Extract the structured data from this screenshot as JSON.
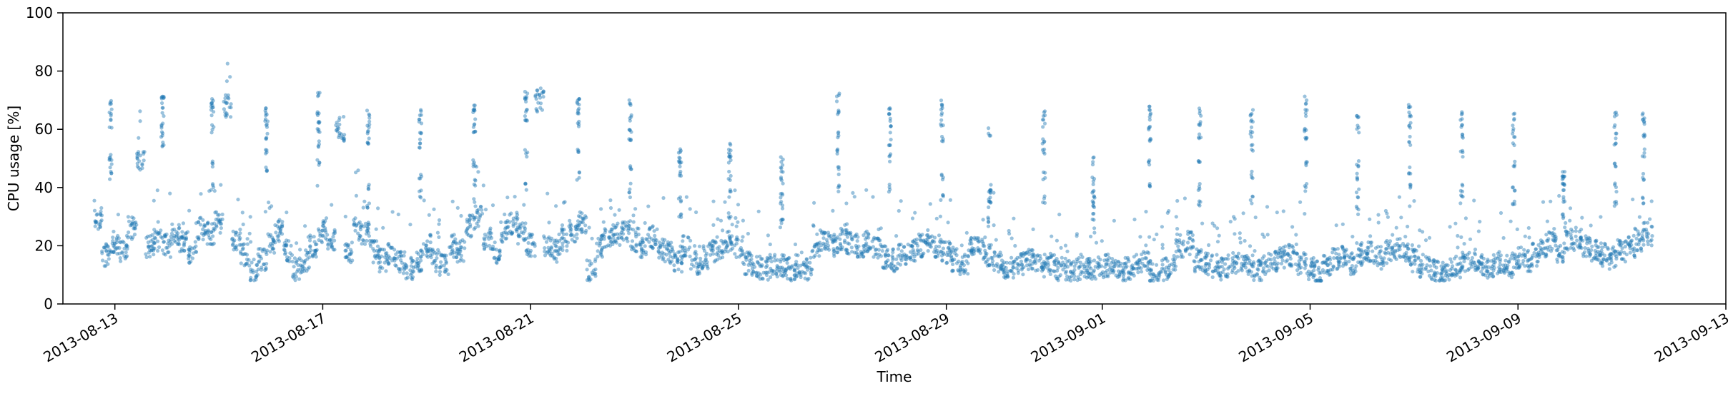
{
  "chart_data": {
    "type": "scatter",
    "xlabel": "Time",
    "ylabel": "CPU usage [%]",
    "ylim": [
      0,
      100
    ],
    "yticks": [
      0,
      20,
      40,
      60,
      80,
      100
    ],
    "xlim": [
      "2013-08-12T00:00",
      "2013-09-13T00:00"
    ],
    "xticks": [
      "2013-08-13",
      "2013-08-17",
      "2013-08-21",
      "2013-08-25",
      "2013-08-29",
      "2013-09-01",
      "2013-09-05",
      "2013-09-09",
      "2013-09-13"
    ],
    "grid": false,
    "legend": "none",
    "marker_color": "#1f77b4",
    "marker_opacity": 0.45,
    "series": [
      {
        "x": [
          "2013-08-12T16:00",
          "2013-08-12T20:00",
          "2013-08-13T00:00",
          "2013-08-13T04:00",
          "2013-08-13T08:00",
          "2013-08-13T12:00",
          "2013-08-13T16:00",
          "2013-08-13T20:00",
          "2013-08-14T00:00",
          "2013-08-14T04:00",
          "2013-08-14T08:00",
          "2013-08-14T12:00",
          "2013-08-14T16:00",
          "2013-08-14T20:00",
          "2013-08-15T00:00",
          "2013-08-15T04:00",
          "2013-08-15T08:00",
          "2013-08-15T12:00",
          "2013-08-15T16:00",
          "2013-08-15T20:00",
          "2013-08-16T00:00",
          "2013-08-16T04:00",
          "2013-08-16T08:00",
          "2013-08-16T12:00",
          "2013-08-16T16:00",
          "2013-08-16T20:00",
          "2013-08-17T00:00",
          "2013-08-17T04:00",
          "2013-08-17T08:00",
          "2013-08-17T12:00",
          "2013-08-17T16:00",
          "2013-08-17T20:00",
          "2013-08-18T00:00",
          "2013-08-18T04:00",
          "2013-08-18T08:00",
          "2013-08-18T12:00",
          "2013-08-18T16:00",
          "2013-08-18T20:00",
          "2013-08-19T00:00",
          "2013-08-19T04:00",
          "2013-08-19T08:00",
          "2013-08-19T12:00",
          "2013-08-19T16:00",
          "2013-08-19T20:00",
          "2013-08-20T00:00",
          "2013-08-20T04:00",
          "2013-08-20T08:00",
          "2013-08-20T12:00",
          "2013-08-20T16:00",
          "2013-08-20T20:00",
          "2013-08-21T00:00",
          "2013-08-21T04:00",
          "2013-08-21T08:00",
          "2013-08-21T12:00",
          "2013-08-21T16:00",
          "2013-08-21T20:00",
          "2013-08-22T00:00",
          "2013-08-22T04:00",
          "2013-08-22T08:00",
          "2013-08-22T12:00",
          "2013-08-22T16:00",
          "2013-08-22T20:00",
          "2013-08-23T00:00",
          "2013-08-23T04:00",
          "2013-08-23T08:00",
          "2013-08-23T12:00",
          "2013-08-23T16:00",
          "2013-08-23T20:00",
          "2013-08-24T00:00",
          "2013-08-24T04:00",
          "2013-08-24T08:00",
          "2013-08-24T12:00",
          "2013-08-24T16:00",
          "2013-08-24T20:00",
          "2013-08-25T00:00",
          "2013-08-25T04:00",
          "2013-08-25T08:00",
          "2013-08-25T12:00",
          "2013-08-25T16:00",
          "2013-08-25T20:00",
          "2013-08-26T00:00",
          "2013-08-26T04:00",
          "2013-08-26T08:00",
          "2013-08-26T12:00",
          "2013-08-26T16:00",
          "2013-08-26T20:00",
          "2013-08-27T00:00",
          "2013-08-27T04:00",
          "2013-08-27T08:00",
          "2013-08-27T12:00",
          "2013-08-27T16:00",
          "2013-08-27T20:00",
          "2013-08-28T00:00",
          "2013-08-28T04:00",
          "2013-08-28T08:00",
          "2013-08-28T12:00",
          "2013-08-28T16:00",
          "2013-08-28T20:00",
          "2013-08-29T00:00",
          "2013-08-29T04:00",
          "2013-08-29T08:00",
          "2013-08-29T12:00",
          "2013-08-29T16:00",
          "2013-08-29T20:00",
          "2013-08-30T00:00",
          "2013-08-30T04:00",
          "2013-08-30T08:00",
          "2013-08-30T12:00",
          "2013-08-30T16:00",
          "2013-08-30T20:00",
          "2013-08-31T00:00",
          "2013-08-31T04:00",
          "2013-08-31T08:00",
          "2013-08-31T12:00",
          "2013-08-31T16:00",
          "2013-08-31T20:00",
          "2013-09-01T00:00",
          "2013-09-01T04:00",
          "2013-09-01T08:00",
          "2013-09-01T12:00",
          "2013-09-01T16:00",
          "2013-09-01T20:00",
          "2013-09-02T00:00",
          "2013-09-02T04:00",
          "2013-09-02T08:00",
          "2013-09-02T12:00",
          "2013-09-02T16:00",
          "2013-09-02T20:00",
          "2013-09-03T00:00",
          "2013-09-03T04:00",
          "2013-09-03T08:00",
          "2013-09-03T12:00",
          "2013-09-03T16:00",
          "2013-09-03T20:00",
          "2013-09-04T00:00",
          "2013-09-04T04:00",
          "2013-09-04T08:00",
          "2013-09-04T12:00",
          "2013-09-04T16:00",
          "2013-09-04T20:00",
          "2013-09-05T00:00",
          "2013-09-05T04:00",
          "2013-09-05T08:00",
          "2013-09-05T12:00",
          "2013-09-05T16:00",
          "2013-09-05T20:00",
          "2013-09-06T00:00",
          "2013-09-06T04:00",
          "2013-09-06T08:00",
          "2013-09-06T12:00",
          "2013-09-06T16:00",
          "2013-09-06T20:00",
          "2013-09-07T00:00",
          "2013-09-07T04:00",
          "2013-09-07T08:00",
          "2013-09-07T12:00",
          "2013-09-07T16:00",
          "2013-09-07T20:00",
          "2013-09-08T00:00",
          "2013-09-08T04:00",
          "2013-09-08T08:00",
          "2013-09-08T12:00",
          "2013-09-08T16:00",
          "2013-09-08T20:00",
          "2013-09-09T00:00",
          "2013-09-09T04:00",
          "2013-09-09T08:00",
          "2013-09-09T12:00",
          "2013-09-09T16:00",
          "2013-09-09T20:00",
          "2013-09-10T00:00",
          "2013-09-10T04:00",
          "2013-09-10T08:00",
          "2013-09-10T12:00",
          "2013-09-10T16:00",
          "2013-09-10T20:00",
          "2013-09-11T00:00",
          "2013-09-11T04:00",
          "2013-09-11T08:00",
          "2013-09-11T12:00"
        ],
        "y": [
          29,
          17,
          21,
          18,
          26,
          50,
          20,
          22,
          20,
          24,
          22,
          18,
          26,
          24,
          28,
          68,
          22,
          17,
          12,
          15,
          20,
          25,
          18,
          12,
          15,
          20,
          25,
          22,
          60,
          18,
          26,
          24,
          18,
          15,
          17,
          14,
          12,
          15,
          20,
          15,
          13,
          20,
          18,
          27,
          30,
          22,
          18,
          25,
          28,
          24,
          20,
          70,
          20,
          18,
          22,
          25,
          28,
          12,
          20,
          22,
          24,
          25,
          22,
          20,
          23,
          19,
          18,
          15,
          20,
          14,
          16,
          18,
          19,
          21,
          20,
          14,
          13,
          12,
          13,
          13,
          12,
          13,
          12,
          20,
          21,
          20,
          22,
          21,
          20,
          22,
          19,
          16,
          15,
          17,
          18,
          20,
          22,
          20,
          18,
          15,
          14,
          20,
          19,
          17,
          14,
          12,
          13,
          14,
          15,
          13,
          14,
          12,
          11,
          12,
          13,
          12,
          13,
          12,
          11,
          12,
          13,
          14,
          11,
          12,
          13,
          20,
          21,
          15,
          14,
          13,
          12,
          14,
          15,
          13,
          12,
          14,
          15,
          16,
          17,
          14,
          12,
          11,
          13,
          15,
          16,
          14,
          17,
          18,
          16,
          18,
          19,
          17,
          15,
          13,
          12,
          11,
          12,
          13,
          14,
          15,
          13,
          12,
          14,
          13,
          16,
          15,
          17,
          20,
          22,
          18,
          22,
          23,
          20,
          18,
          17,
          16,
          18,
          20,
          22,
          24
        ]
      }
    ],
    "spike_clusters": [
      {
        "x": "2013-08-12T22:00",
        "y": [
          44,
          48,
          50,
          62,
          66,
          70
        ]
      },
      {
        "x": "2013-08-13T22:00",
        "y": [
          54,
          58,
          62,
          66,
          70,
          72
        ]
      },
      {
        "x": "2013-08-14T21:00",
        "y": [
          40,
          48,
          60,
          66,
          68,
          69
        ]
      },
      {
        "x": "2013-08-15T22:00",
        "y": [
          46,
          52,
          58,
          62,
          64,
          66
        ]
      },
      {
        "x": "2013-08-16T22:00",
        "y": [
          48,
          55,
          60,
          63,
          66,
          72
        ]
      },
      {
        "x": "2013-08-17T21:00",
        "y": [
          34,
          40,
          56,
          58,
          62,
          65
        ]
      },
      {
        "x": "2013-08-18T21:00",
        "y": [
          38,
          44,
          54,
          58,
          62,
          66
        ]
      },
      {
        "x": "2013-08-19T22:00",
        "y": [
          42,
          48,
          58,
          62,
          66,
          68
        ]
      },
      {
        "x": "2013-08-20T22:00",
        "y": [
          40,
          52,
          62,
          66,
          70,
          72
        ]
      },
      {
        "x": "2013-08-21T22:00",
        "y": [
          44,
          52,
          62,
          66,
          68,
          71
        ]
      },
      {
        "x": "2013-08-22T22:00",
        "y": [
          38,
          46,
          56,
          60,
          64,
          69
        ]
      },
      {
        "x": "2013-08-23T21:00",
        "y": [
          30,
          36,
          44,
          48,
          50,
          52
        ]
      },
      {
        "x": "2013-08-24T20:00",
        "y": [
          30,
          38,
          44,
          50,
          52,
          54
        ]
      },
      {
        "x": "2013-08-25T20:00",
        "y": [
          28,
          34,
          38,
          42,
          46,
          49
        ]
      },
      {
        "x": "2013-08-26T22:00",
        "y": [
          40,
          46,
          52,
          58,
          66,
          71
        ]
      },
      {
        "x": "2013-08-27T22:00",
        "y": [
          40,
          50,
          56,
          60,
          64,
          66
        ]
      },
      {
        "x": "2013-08-28T22:00",
        "y": [
          36,
          44,
          56,
          62,
          66,
          69
        ]
      },
      {
        "x": "2013-08-29T20:00",
        "y": [
          28,
          34,
          36,
          38,
          40,
          59
        ]
      },
      {
        "x": "2013-08-30T21:00",
        "y": [
          36,
          44,
          52,
          56,
          62,
          65
        ]
      },
      {
        "x": "2013-08-31T20:00",
        "y": [
          30,
          34,
          36,
          38,
          42,
          49
        ]
      },
      {
        "x": "2013-09-01T22:00",
        "y": [
          40,
          48,
          56,
          60,
          64,
          68
        ]
      },
      {
        "x": "2013-09-02T21:00",
        "y": [
          34,
          40,
          50,
          58,
          62,
          66
        ]
      },
      {
        "x": "2013-09-03T21:00",
        "y": [
          36,
          44,
          54,
          58,
          62,
          66
        ]
      },
      {
        "x": "2013-09-04T22:00",
        "y": [
          40,
          48,
          56,
          60,
          66,
          70
        ]
      },
      {
        "x": "2013-09-05T22:00",
        "y": [
          32,
          38,
          44,
          48,
          60,
          64
        ]
      },
      {
        "x": "2013-09-06T22:00",
        "y": [
          40,
          46,
          56,
          62,
          65,
          68
        ]
      },
      {
        "x": "2013-09-07T22:00",
        "y": [
          36,
          40,
          52,
          58,
          62,
          65
        ]
      },
      {
        "x": "2013-09-08T22:00",
        "y": [
          34,
          40,
          48,
          56,
          60,
          64
        ]
      },
      {
        "x": "2013-09-09T21:00",
        "y": [
          30,
          36,
          40,
          42,
          44,
          45
        ]
      },
      {
        "x": "2013-09-10T21:00",
        "y": [
          34,
          40,
          48,
          56,
          60,
          65
        ]
      },
      {
        "x": "2013-09-11T10:00",
        "y": [
          36,
          44,
          52,
          58,
          62,
          64
        ]
      }
    ]
  }
}
